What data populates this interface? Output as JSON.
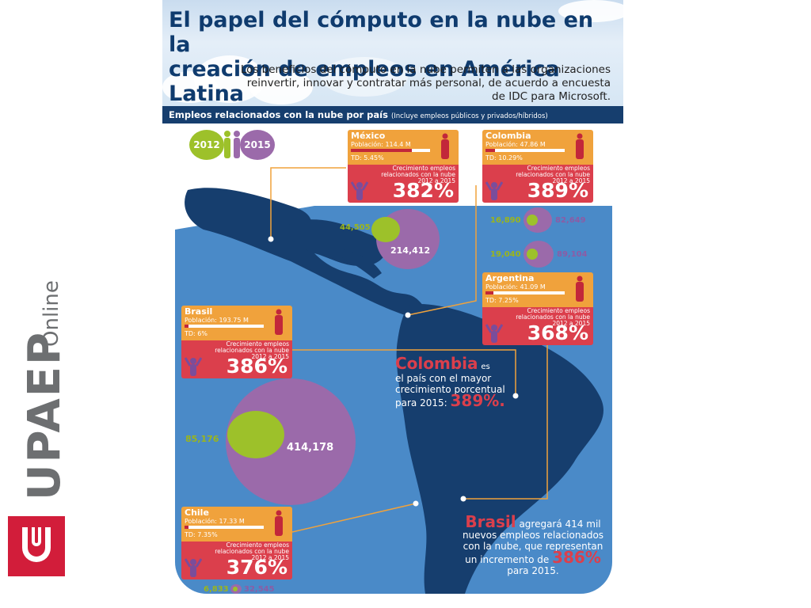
{
  "branding": {
    "upaep": "UPAEP",
    "online": "Online"
  },
  "header": {
    "title_line1": "El papel del cómputo en la nube en la",
    "title_line2": "creación de empleos en América Latina",
    "subtitle_line1": "Los beneficios del cómputo en la nube permiten a las organizaciones",
    "subtitle_line2": "reinvertir, innovar y contratar más personal, de acuerdo a encuesta",
    "subtitle_line3": "de IDC para Microsoft."
  },
  "section_bar": {
    "label": "Empleos relacionados con la nube por país",
    "note": "(Incluye empleos públicos y privados/híbridos)"
  },
  "legend": {
    "year_2012": "2012",
    "year_2015": "2015",
    "color_2012": "#9dc12a",
    "color_2015": "#9b6aaa"
  },
  "cards": {
    "mexico": {
      "name": "México",
      "population": "Población: 114.4 M",
      "population_share": 0.77,
      "td": "TD: 5.45%",
      "desc1": "Crecimiento empleos",
      "desc2": "relacionados con la nube",
      "desc3": "2012 a 2015",
      "growth": "382%"
    },
    "colombia": {
      "name": "Colombia",
      "population": "Población: 47.86 M",
      "population_share": 0.12,
      "td": "TD: 10.29%",
      "desc1": "Crecimiento empleos",
      "desc2": "relacionados con la nube",
      "desc3": "2012 a 2015",
      "growth": "389%"
    },
    "argentina": {
      "name": "Argentina",
      "population": "Población: 41.09 M",
      "population_share": 0.1,
      "td": "TD: 7.25%",
      "desc1": "Crecimiento empleos",
      "desc2": "relacionados con la nube",
      "desc3": "2012 a 2015",
      "growth": "368%"
    },
    "brasil": {
      "name": "Brasil",
      "population": "Población: 193.75 M",
      "population_share": 0.05,
      "td": "TD: 6%",
      "desc1": "Crecimiento empleos",
      "desc2": "relacionados con la nube",
      "desc3": "2012 a 2015",
      "growth": "386%"
    },
    "chile": {
      "name": "Chile",
      "population": "Población: 17.33 M",
      "population_share": 0.05,
      "td": "TD: 7.35%",
      "desc1": "Crecimiento empleos",
      "desc2": "relacionados con la nube",
      "desc3": "2012 a 2015",
      "growth": "376%"
    }
  },
  "jobs": {
    "mexico": {
      "y2012": "44,505",
      "y2015": "214,412"
    },
    "colombia": {
      "y2012": "16,890",
      "y2015": "82,649"
    },
    "argentina": {
      "y2012": "19,040",
      "y2015": "89,104"
    },
    "brasil": {
      "y2012": "85,176",
      "y2015": "414,178"
    },
    "chile": {
      "y2012": "6,833",
      "y2015": "32,545"
    }
  },
  "notes": {
    "colombia_big": "Colombia",
    "colombia_l1": "es",
    "colombia_l2": "el país con el mayor",
    "colombia_l3": "crecimiento porcentual",
    "colombia_l4": "para 2015:",
    "colombia_pct": "389%.",
    "brasil_big": "Brasil",
    "brasil_l1": "agregará 414 mil",
    "brasil_l2": "nuevos empleos relacionados",
    "brasil_l3": "con la nube, que representan",
    "brasil_l4": "un incremento de",
    "brasil_pct": "386%",
    "brasil_l5": "para 2015."
  }
}
